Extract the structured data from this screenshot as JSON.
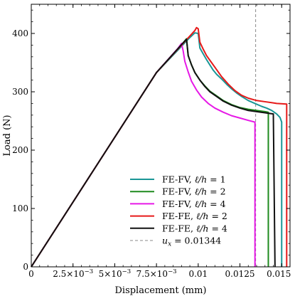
{
  "chart_data": {
    "type": "line",
    "xlabel": "Displacement (mm)",
    "ylabel": "Load (N)",
    "xlim": [
      0,
      0.0155
    ],
    "ylim": [
      0,
      450
    ],
    "grid": false,
    "legend_position": "lower-center",
    "x_ticks": [
      {
        "value": 0,
        "mantissa": "0",
        "exp": ""
      },
      {
        "value": 0.0025,
        "mantissa": "2.5×10",
        "exp": "−3"
      },
      {
        "value": 0.005,
        "mantissa": "5×10",
        "exp": "−3"
      },
      {
        "value": 0.0075,
        "mantissa": "7.5×10",
        "exp": "−3"
      },
      {
        "value": 0.01,
        "mantissa": "0.01",
        "exp": ""
      },
      {
        "value": 0.0125,
        "mantissa": "0.0125",
        "exp": ""
      },
      {
        "value": 0.015,
        "mantissa": "0.015",
        "exp": ""
      }
    ],
    "y_ticks": [
      {
        "value": 0,
        "label": "0"
      },
      {
        "value": 100,
        "label": "100"
      },
      {
        "value": 200,
        "label": "200"
      },
      {
        "value": 300,
        "label": "300"
      },
      {
        "value": 400,
        "label": "400"
      }
    ],
    "series": [
      {
        "name": "FE-FV, ℓ/h = 1",
        "legend_parts": [
          {
            "t": "FE-FV, ",
            "s": "normal"
          },
          {
            "t": "ℓ/h",
            "s": "italic"
          },
          {
            "t": " = 1",
            "s": "normal"
          }
        ],
        "color": "#1a9696",
        "points": [
          [
            0,
            0
          ],
          [
            0.0075,
            333
          ],
          [
            0.0095,
            393
          ],
          [
            0.0098,
            401
          ],
          [
            0.01,
            400
          ],
          [
            0.0101,
            375
          ],
          [
            0.0103,
            365
          ],
          [
            0.0105,
            355
          ],
          [
            0.0107,
            346
          ],
          [
            0.0109,
            337
          ],
          [
            0.0111,
            330
          ],
          [
            0.0114,
            322
          ],
          [
            0.0117,
            313
          ],
          [
            0.012,
            305
          ],
          [
            0.0123,
            298
          ],
          [
            0.0126,
            292
          ],
          [
            0.013,
            285
          ],
          [
            0.0134,
            280
          ],
          [
            0.0138,
            275
          ],
          [
            0.0141,
            272
          ],
          [
            0.0144,
            268
          ],
          [
            0.0147,
            262
          ],
          [
            0.0149,
            256
          ],
          [
            0.015,
            248
          ],
          [
            0.015,
            0
          ]
        ]
      },
      {
        "name": "FE-FV, ℓ/h = 2",
        "legend_parts": [
          {
            "t": "FE-FV, ",
            "s": "normal"
          },
          {
            "t": "ℓ/h",
            "s": "italic"
          },
          {
            "t": " = 2",
            "s": "normal"
          }
        ],
        "color": "#1e8a1e",
        "points": [
          [
            0,
            0
          ],
          [
            0.0075,
            333
          ],
          [
            0.0091,
            384
          ],
          [
            0.0093,
            391
          ],
          [
            0.0094,
            362
          ],
          [
            0.0096,
            346
          ],
          [
            0.0098,
            333
          ],
          [
            0.0101,
            320
          ],
          [
            0.0104,
            310
          ],
          [
            0.0107,
            301
          ],
          [
            0.0111,
            293
          ],
          [
            0.0115,
            285
          ],
          [
            0.012,
            278
          ],
          [
            0.0125,
            273
          ],
          [
            0.013,
            270
          ],
          [
            0.0135,
            268
          ],
          [
            0.014,
            266
          ],
          [
            0.0142,
            265
          ],
          [
            0.0142,
            0
          ]
        ]
      },
      {
        "name": "FE-FV, ℓ/h = 4",
        "legend_parts": [
          {
            "t": "FE-FV, ",
            "s": "normal"
          },
          {
            "t": "ℓ/h",
            "s": "italic"
          },
          {
            "t": " = 4",
            "s": "normal"
          }
        ],
        "color": "#e619e6",
        "points": [
          [
            0,
            0
          ],
          [
            0.0075,
            333
          ],
          [
            0.0088,
            375
          ],
          [
            0.009,
            383
          ],
          [
            0.0091,
            370
          ],
          [
            0.0092,
            352
          ],
          [
            0.0094,
            334
          ],
          [
            0.0096,
            318
          ],
          [
            0.0099,
            303
          ],
          [
            0.0102,
            291
          ],
          [
            0.0106,
            280
          ],
          [
            0.011,
            272
          ],
          [
            0.0115,
            265
          ],
          [
            0.012,
            259
          ],
          [
            0.0125,
            255
          ],
          [
            0.013,
            251
          ],
          [
            0.0134,
            248
          ],
          [
            0.0134,
            0
          ]
        ]
      },
      {
        "name": "FE-FE, ℓ/h = 2",
        "legend_parts": [
          {
            "t": "FE-FE, ",
            "s": "normal"
          },
          {
            "t": "ℓ/h",
            "s": "italic"
          },
          {
            "t": " = 2",
            "s": "normal"
          }
        ],
        "color": "#e61919",
        "points": [
          [
            0,
            0
          ],
          [
            0.0075,
            333
          ],
          [
            0.0098,
            405
          ],
          [
            0.0099,
            410
          ],
          [
            0.01,
            408
          ],
          [
            0.0101,
            385
          ],
          [
            0.0103,
            373
          ],
          [
            0.0105,
            362
          ],
          [
            0.0108,
            350
          ],
          [
            0.0111,
            338
          ],
          [
            0.0114,
            326
          ],
          [
            0.0118,
            313
          ],
          [
            0.0122,
            302
          ],
          [
            0.0126,
            294
          ],
          [
            0.013,
            289
          ],
          [
            0.0135,
            285
          ],
          [
            0.014,
            283
          ],
          [
            0.0145,
            281
          ],
          [
            0.0147,
            280
          ],
          [
            0.0153,
            279
          ],
          [
            0.0153,
            0
          ]
        ]
      },
      {
        "name": "FE-FE, ℓ/h = 4",
        "legend_parts": [
          {
            "t": "FE-FE, ",
            "s": "normal"
          },
          {
            "t": "ℓ/h",
            "s": "italic"
          },
          {
            "t": " = 4",
            "s": "normal"
          }
        ],
        "color": "#111111",
        "points": [
          [
            0,
            0
          ],
          [
            0.0075,
            333
          ],
          [
            0.0091,
            384
          ],
          [
            0.0093,
            390
          ],
          [
            0.0094,
            362
          ],
          [
            0.0096,
            346
          ],
          [
            0.0098,
            333
          ],
          [
            0.0101,
            320
          ],
          [
            0.0104,
            309
          ],
          [
            0.0107,
            300
          ],
          [
            0.0111,
            292
          ],
          [
            0.0115,
            284
          ],
          [
            0.012,
            277
          ],
          [
            0.0125,
            272
          ],
          [
            0.013,
            268
          ],
          [
            0.0135,
            266
          ],
          [
            0.014,
            264
          ],
          [
            0.0145,
            262
          ],
          [
            0.0146,
            0
          ]
        ]
      }
    ],
    "reference_line": {
      "name": "u_x = 0.01344",
      "legend_parts": [
        {
          "t": "u",
          "s": "italic"
        },
        {
          "t": "x",
          "s": "sub"
        },
        {
          "t": " = 0.01344",
          "s": "normal"
        }
      ],
      "x": 0.01344,
      "color": "#888888",
      "style": "dashed"
    }
  }
}
